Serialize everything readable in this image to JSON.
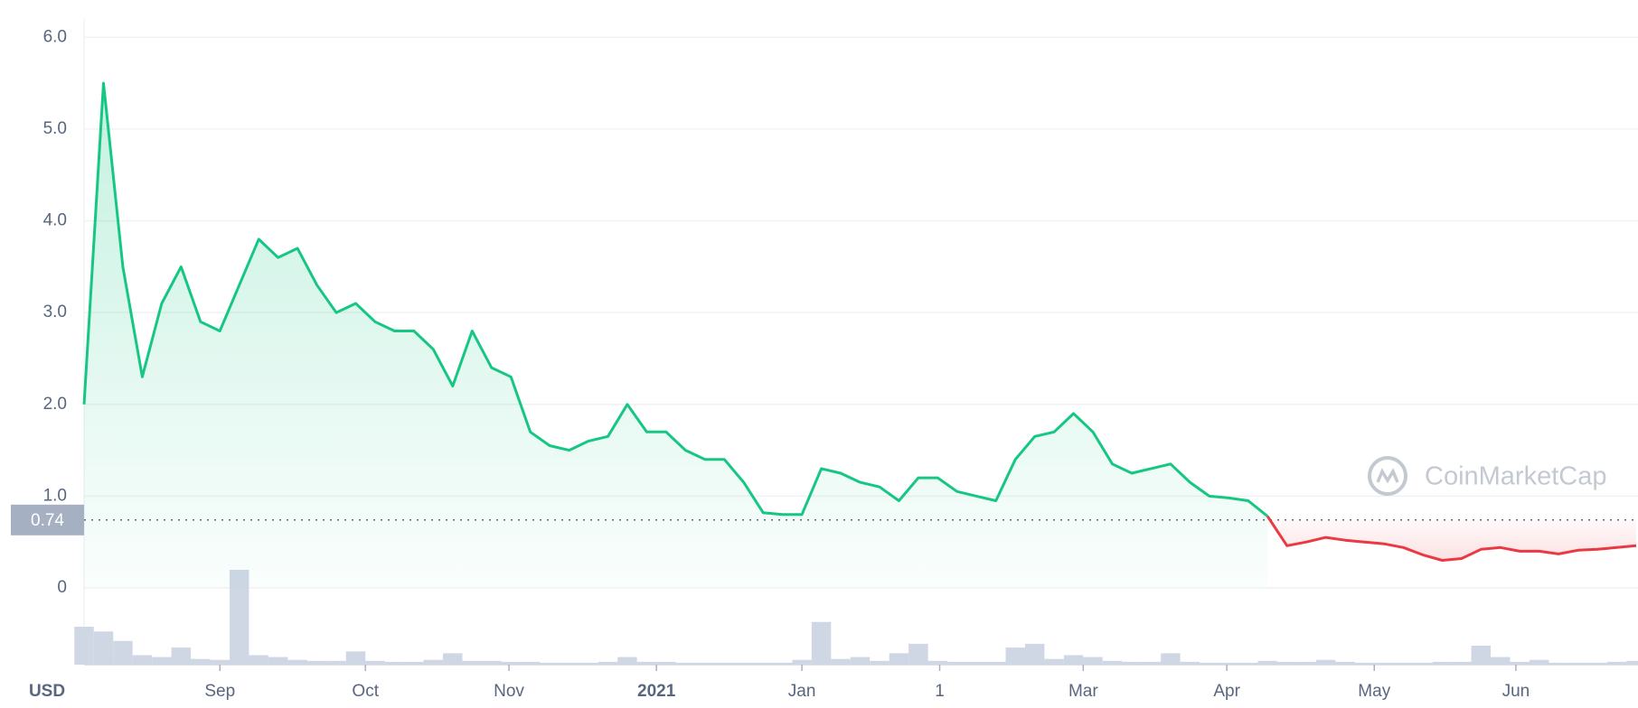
{
  "chart_data": {
    "type": "line",
    "currency": "USD",
    "watermark": "CoinMarketCap",
    "xlim": [
      0,
      80
    ],
    "xticks": [
      {
        "value": 7.0,
        "label": "Sep"
      },
      {
        "value": 14.5,
        "label": "Oct"
      },
      {
        "value": 21.9,
        "label": "Nov"
      },
      {
        "value": 29.5,
        "label": "2021"
      },
      {
        "value": 37.0,
        "label": "Jan"
      },
      {
        "value": 44.1,
        "label": "1"
      },
      {
        "value": 51.5,
        "label": "Mar"
      },
      {
        "value": 58.9,
        "label": "Apr"
      },
      {
        "value": 66.5,
        "label": "May"
      },
      {
        "value": 73.8,
        "label": "Jun"
      }
    ],
    "ylim": [
      0,
      6.2
    ],
    "yticks": [
      0,
      {
        "value": 1,
        "label": "1.0"
      },
      {
        "value": 2,
        "label": "2.0"
      },
      {
        "value": 3,
        "label": "3.0"
      },
      {
        "value": 4,
        "label": "4.0"
      },
      {
        "value": 5,
        "label": "5.0"
      },
      {
        "value": 6,
        "label": "6.0"
      }
    ],
    "grid": true,
    "reference_line": 0.74,
    "series": [
      {
        "color": "#16c784",
        "values": [
          2.0,
          5.5,
          3.5,
          2.3,
          3.1,
          3.5,
          2.9,
          2.8,
          3.3,
          3.8,
          3.6,
          3.7,
          3.3,
          3.0,
          3.1,
          2.9,
          2.8,
          2.8,
          2.6,
          2.2,
          2.8,
          2.4,
          2.3,
          1.7,
          1.55,
          1.5,
          1.6,
          1.65,
          2.0,
          1.7,
          1.7,
          1.5,
          1.4,
          1.4,
          1.15,
          0.82,
          0.8,
          0.8,
          1.3,
          1.25,
          1.15,
          1.1,
          0.95,
          1.2,
          1.2,
          1.05,
          1.0,
          0.95,
          1.4,
          1.65,
          1.7,
          1.9,
          1.7,
          1.35,
          1.25,
          1.3,
          1.35,
          1.15,
          1.0,
          0.98,
          0.95,
          0.78,
          null,
          null,
          null,
          null,
          null,
          null,
          null,
          null,
          null,
          null,
          null,
          null,
          null,
          null,
          null,
          null,
          null,
          null,
          null
        ]
      },
      {
        "color": "#ea3943",
        "values": [
          null,
          null,
          null,
          null,
          null,
          null,
          null,
          null,
          null,
          null,
          null,
          null,
          null,
          null,
          null,
          null,
          null,
          null,
          null,
          null,
          null,
          null,
          null,
          null,
          null,
          null,
          null,
          null,
          null,
          null,
          null,
          null,
          null,
          null,
          null,
          null,
          null,
          null,
          null,
          null,
          null,
          null,
          null,
          null,
          null,
          null,
          null,
          null,
          null,
          null,
          null,
          null,
          null,
          null,
          null,
          null,
          null,
          null,
          null,
          null,
          null,
          0.78,
          0.46,
          0.5,
          0.55,
          0.52,
          0.5,
          0.48,
          0.44,
          0.36,
          0.3,
          0.32,
          0.42,
          0.44,
          0.4,
          0.4,
          0.37,
          0.41,
          0.42,
          0.44,
          0.46
        ]
      }
    ],
    "volume": {
      "color": "#cfd6e4",
      "ylim": [
        0,
        100
      ],
      "values": [
        40,
        35,
        25,
        10,
        8,
        18,
        6,
        5,
        100,
        10,
        8,
        5,
        4,
        4,
        14,
        4,
        3,
        3,
        5,
        12,
        4,
        4,
        3,
        3,
        2,
        2,
        2,
        3,
        8,
        3,
        3,
        2,
        2,
        2,
        2,
        2,
        2,
        5,
        45,
        6,
        8,
        4,
        12,
        22,
        4,
        3,
        3,
        3,
        18,
        22,
        6,
        10,
        8,
        4,
        3,
        3,
        12,
        3,
        2,
        2,
        2,
        4,
        3,
        3,
        5,
        3,
        2,
        2,
        2,
        2,
        3,
        3,
        20,
        8,
        3,
        5,
        2,
        2,
        2,
        3,
        4
      ]
    }
  }
}
